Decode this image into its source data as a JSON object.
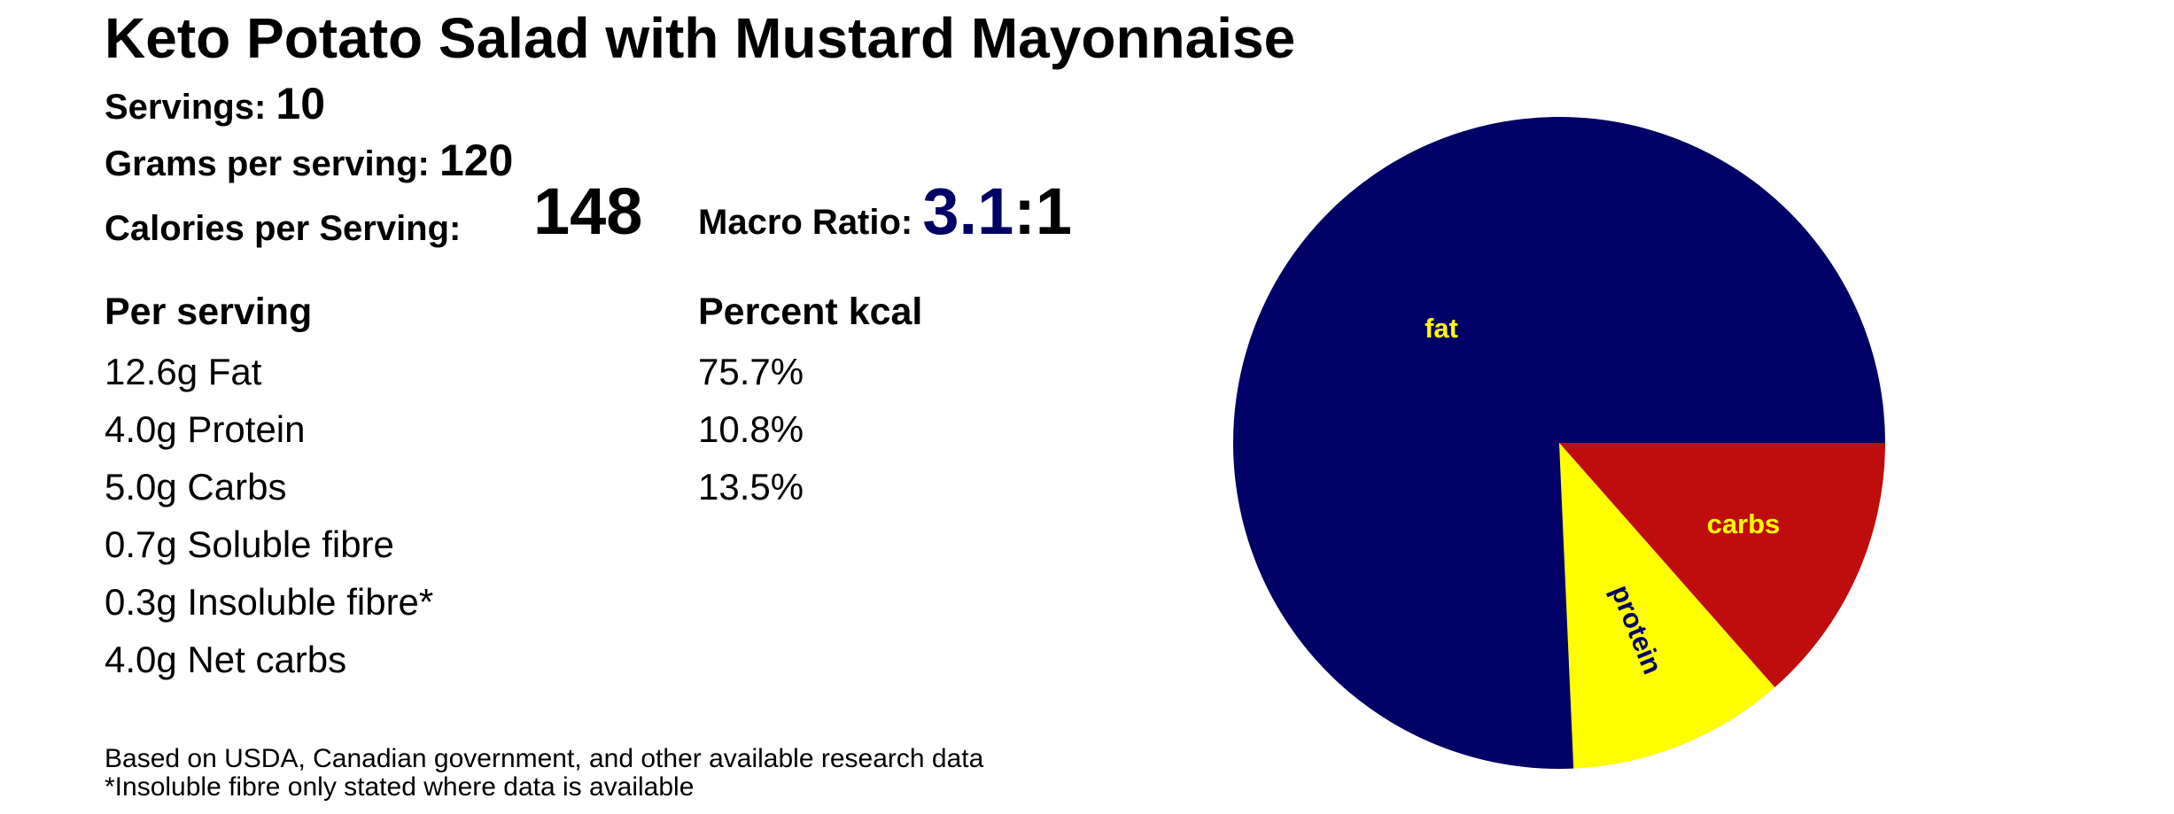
{
  "title": "Keto Potato Salad with Mustard Mayonnaise",
  "servings": {
    "label": "Servings: ",
    "value": "10"
  },
  "grams": {
    "label": "Grams per serving: ",
    "value": "120"
  },
  "calories": {
    "label": "Calories per Serving:",
    "value": "148"
  },
  "macro_ratio": {
    "label": "Macro Ratio: ",
    "fat_part": "3.1",
    "rest_part": ":1"
  },
  "table": {
    "per_serving_header": "Per serving",
    "percent_header": "Percent kcal",
    "rows": [
      {
        "amount": "12.6g Fat",
        "percent": "75.7%"
      },
      {
        "amount": "4.0g Protein",
        "percent": "10.8%"
      },
      {
        "amount": "5.0g Carbs",
        "percent": "13.5%"
      },
      {
        "amount": "0.7g Soluble fibre",
        "percent": ""
      },
      {
        "amount": "0.3g Insoluble fibre*",
        "percent": ""
      },
      {
        "amount": "4.0g Net carbs",
        "percent": ""
      }
    ]
  },
  "footnotes": [
    "Based on USDA, Canadian government, and other available research data",
    "*Insoluble fibre only stated where data is available"
  ],
  "colors": {
    "fat": "#000066",
    "protein": "#ffff00",
    "carbs": "#bf0d0d",
    "label_on_dark": "#ffff00",
    "label_on_yellow": "#000066",
    "ratio_accent": "#000066"
  },
  "chart_data": {
    "type": "pie",
    "title": "",
    "start_angle_deg": 0,
    "direction": "clockwise",
    "slices": [
      {
        "label": "carbs",
        "value": 13.5,
        "color": "#bf0d0d",
        "label_color": "#ffff00"
      },
      {
        "label": "protein",
        "value": 10.8,
        "color": "#ffff00",
        "label_color": "#000066"
      },
      {
        "label": "fat",
        "value": 75.7,
        "color": "#000066",
        "label_color": "#ffff00"
      }
    ]
  }
}
